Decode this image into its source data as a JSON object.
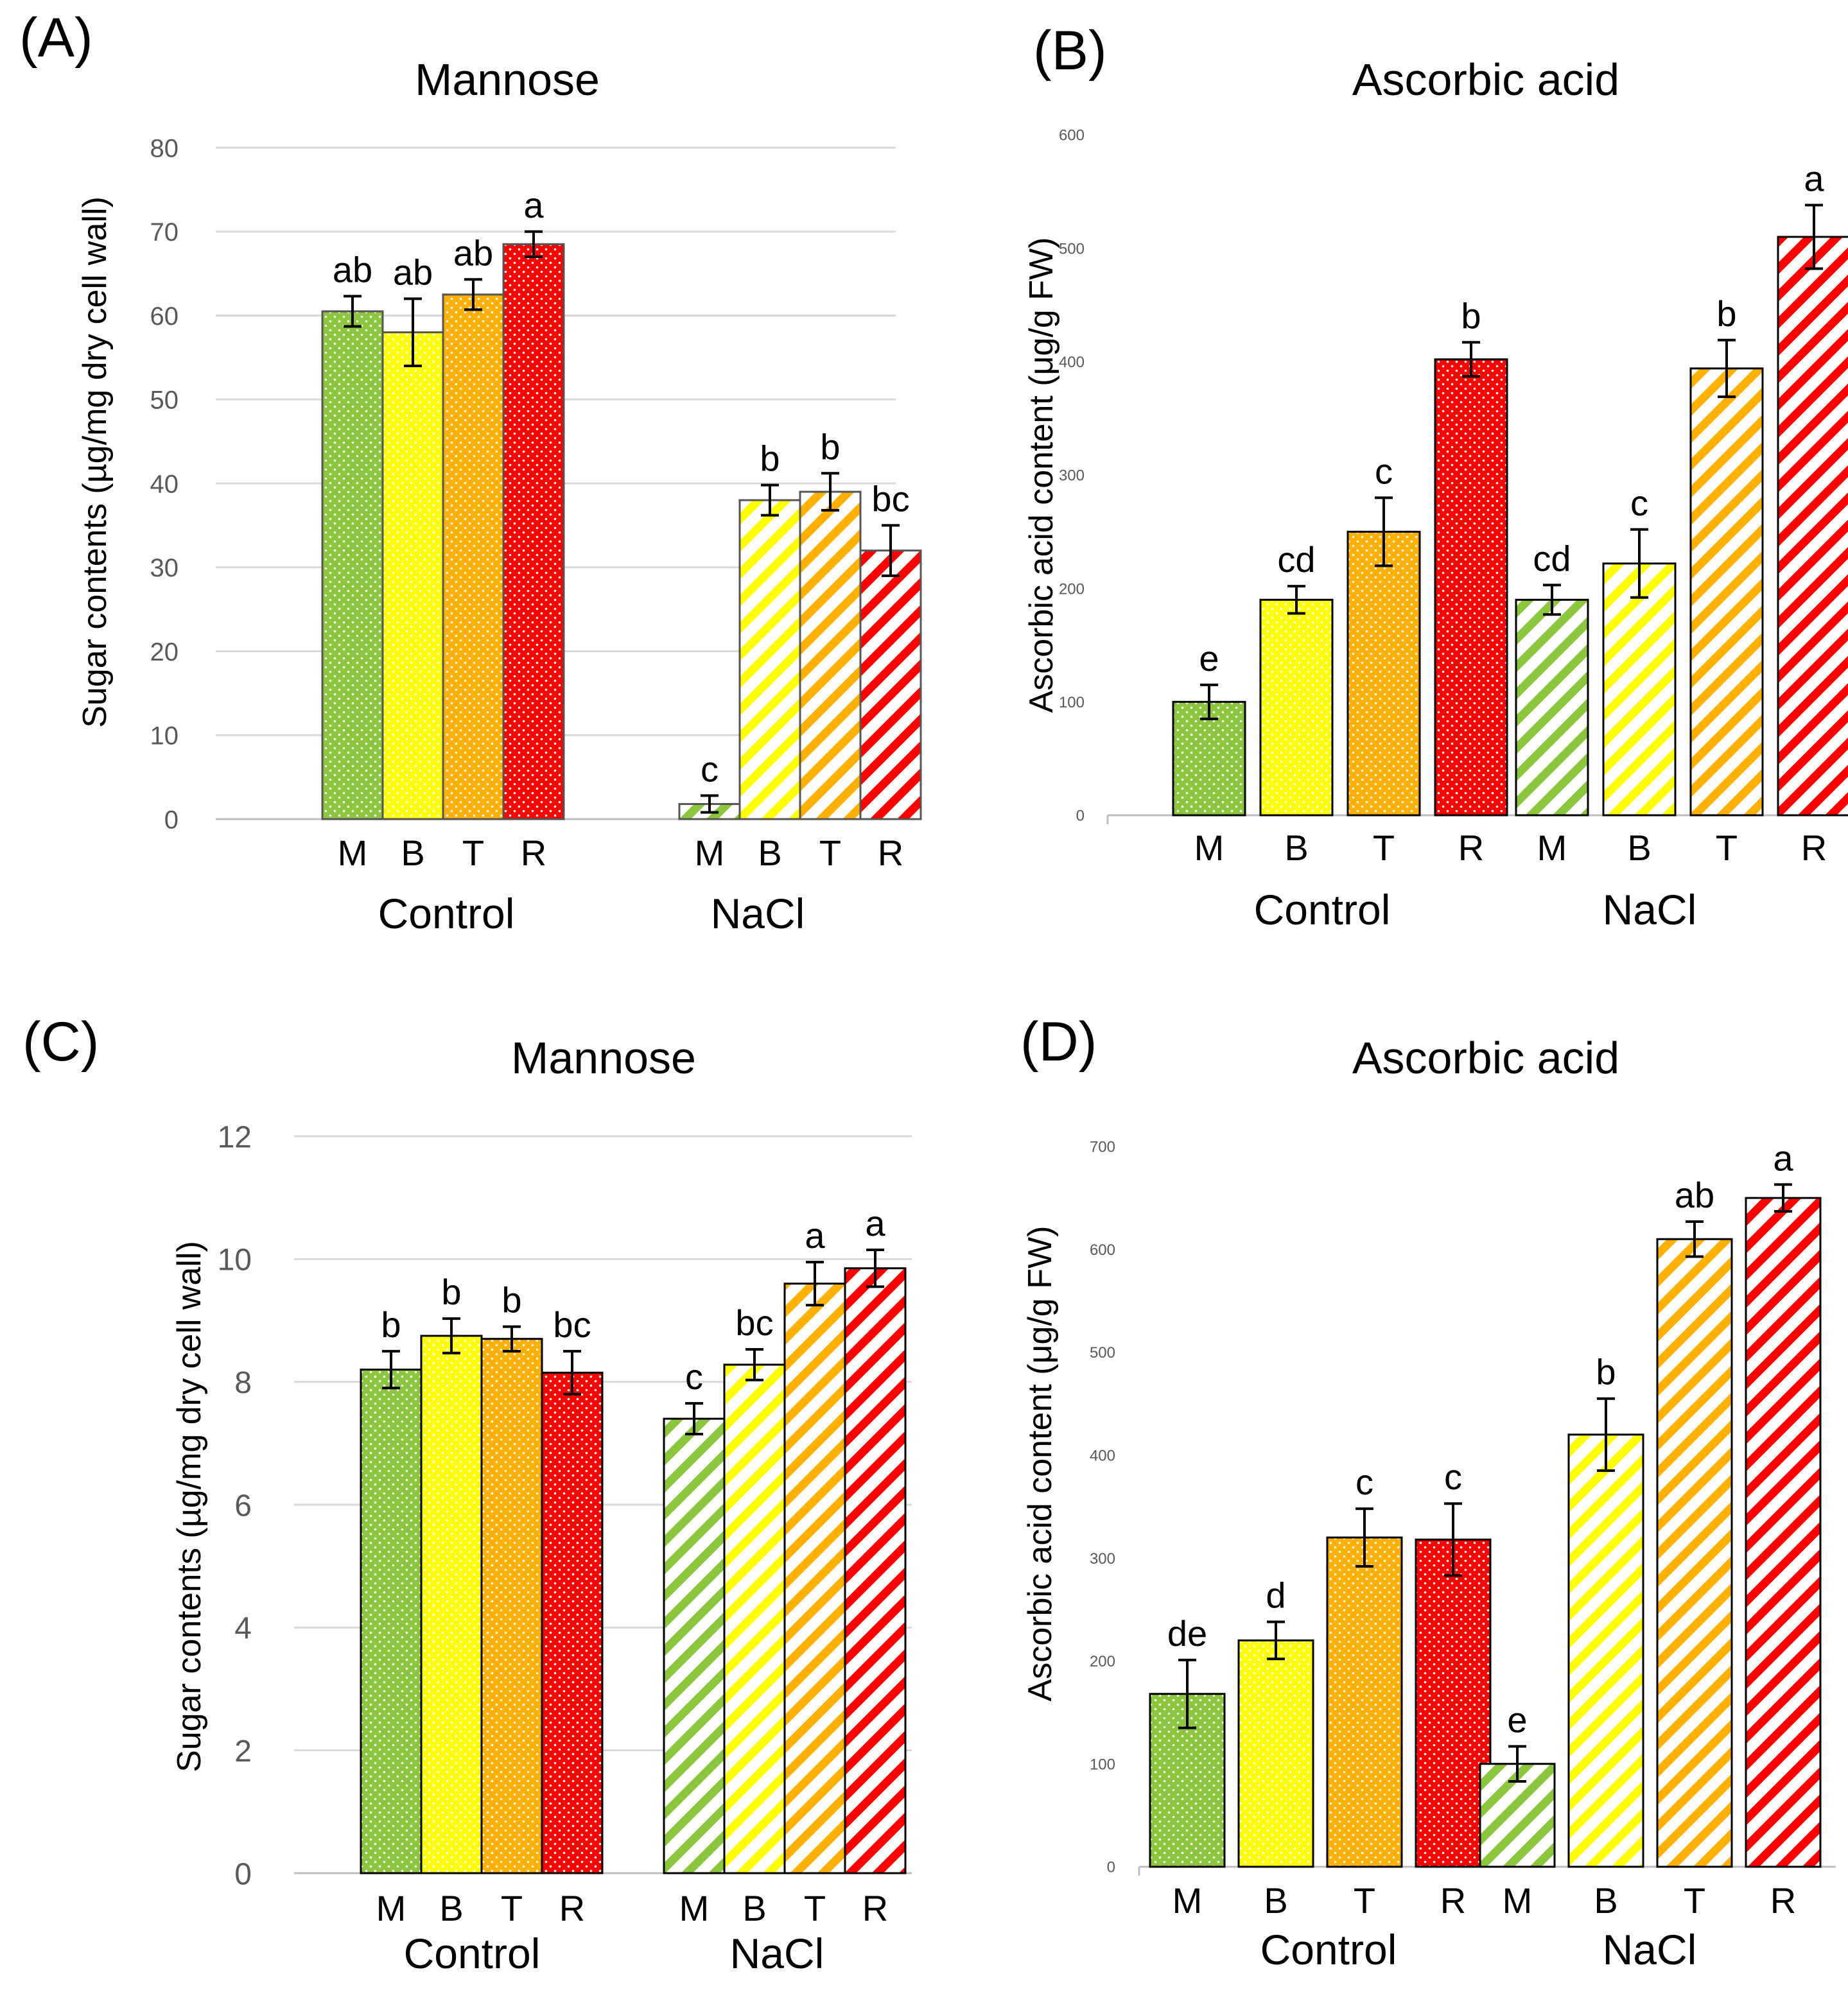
{
  "colors": {
    "M": "#8cc63f",
    "B": "#ffff00",
    "T": "#ffb000",
    "R": "#ff0000",
    "grid": "#d9d9d9",
    "axis": "#bfbfbf"
  },
  "chart_data": [
    {
      "panel": "(A)",
      "type": "bar",
      "title": "Mannose",
      "ylabel": "Sugar contents (µg/mg dry cell wall)",
      "ylim": [
        0,
        80
      ],
      "yticks": [
        0,
        10,
        20,
        30,
        40,
        50,
        60,
        70,
        80
      ],
      "grid": true,
      "groups": [
        "Control",
        "NaCl"
      ],
      "categories": [
        "M",
        "B",
        "T",
        "R"
      ],
      "series": [
        {
          "name": "Control",
          "pattern": "dots",
          "values": [
            60.5,
            58,
            62.5,
            68.5
          ],
          "errors": [
            1.8,
            4,
            1.8,
            1.5
          ],
          "letters": [
            "ab",
            "ab",
            "ab",
            "a"
          ]
        },
        {
          "name": "NaCl",
          "pattern": "stripes",
          "values": [
            1.8,
            38,
            39,
            32
          ],
          "errors": [
            1,
            1.8,
            2.2,
            3
          ],
          "letters": [
            "c",
            "b",
            "b",
            "bc"
          ]
        }
      ]
    },
    {
      "panel": "(B)",
      "type": "bar",
      "title": "Ascorbic acid",
      "ylabel": "Ascorbic acid content (μg/g FW)",
      "ylim": [
        0,
        600
      ],
      "yticks": [
        0,
        100,
        200,
        300,
        400,
        500,
        600
      ],
      "grid": false,
      "groups": [
        "Control",
        "NaCl"
      ],
      "categories": [
        "M",
        "B",
        "T",
        "R"
      ],
      "series": [
        {
          "name": "Control",
          "pattern": "dots",
          "values": [
            100,
            190,
            250,
            402
          ],
          "errors": [
            15,
            12,
            30,
            15
          ],
          "letters": [
            "e",
            "cd",
            "c",
            "b"
          ]
        },
        {
          "name": "NaCl",
          "pattern": "stripes",
          "values": [
            190,
            222,
            394,
            510
          ],
          "errors": [
            13,
            30,
            25,
            28
          ],
          "letters": [
            "cd",
            "c",
            "b",
            "a"
          ]
        }
      ]
    },
    {
      "panel": "(C)",
      "type": "bar",
      "title": "Mannose",
      "ylabel": "Sugar contents (µg/mg dry cell wall)",
      "ylim": [
        0,
        12
      ],
      "yticks": [
        0,
        2,
        4,
        6,
        8,
        10,
        12
      ],
      "grid": true,
      "groups": [
        "Control",
        "NaCl"
      ],
      "categories": [
        "M",
        "B",
        "T",
        "R"
      ],
      "series": [
        {
          "name": "Control",
          "pattern": "dots",
          "values": [
            8.2,
            8.75,
            8.7,
            8.15
          ],
          "errors": [
            0.3,
            0.28,
            0.2,
            0.35
          ],
          "letters": [
            "b",
            "b",
            "b",
            "bc"
          ]
        },
        {
          "name": "NaCl",
          "pattern": "stripes",
          "values": [
            7.4,
            8.28,
            9.6,
            9.85
          ],
          "errors": [
            0.25,
            0.25,
            0.35,
            0.3
          ],
          "letters": [
            "c",
            "bc",
            "a",
            "a"
          ]
        }
      ]
    },
    {
      "panel": "(D)",
      "type": "bar",
      "title": "Ascorbic acid",
      "ylabel": "Ascorbic acid content (μg/g FW)",
      "ylim": [
        0,
        700
      ],
      "yticks": [
        0,
        100,
        200,
        300,
        400,
        500,
        600,
        700
      ],
      "grid": false,
      "groups": [
        "Control",
        "NaCl"
      ],
      "categories": [
        "M",
        "B",
        "T",
        "R"
      ],
      "series": [
        {
          "name": "Control",
          "pattern": "dots",
          "values": [
            168,
            220,
            320,
            318
          ],
          "errors": [
            33,
            18,
            28,
            35
          ],
          "letters": [
            "de",
            "d",
            "c",
            "c"
          ]
        },
        {
          "name": "NaCl",
          "pattern": "stripes",
          "values": [
            100,
            420,
            610,
            650
          ],
          "errors": [
            17,
            35,
            17,
            13
          ],
          "letters": [
            "e",
            "b",
            "ab",
            "a"
          ]
        }
      ]
    }
  ]
}
